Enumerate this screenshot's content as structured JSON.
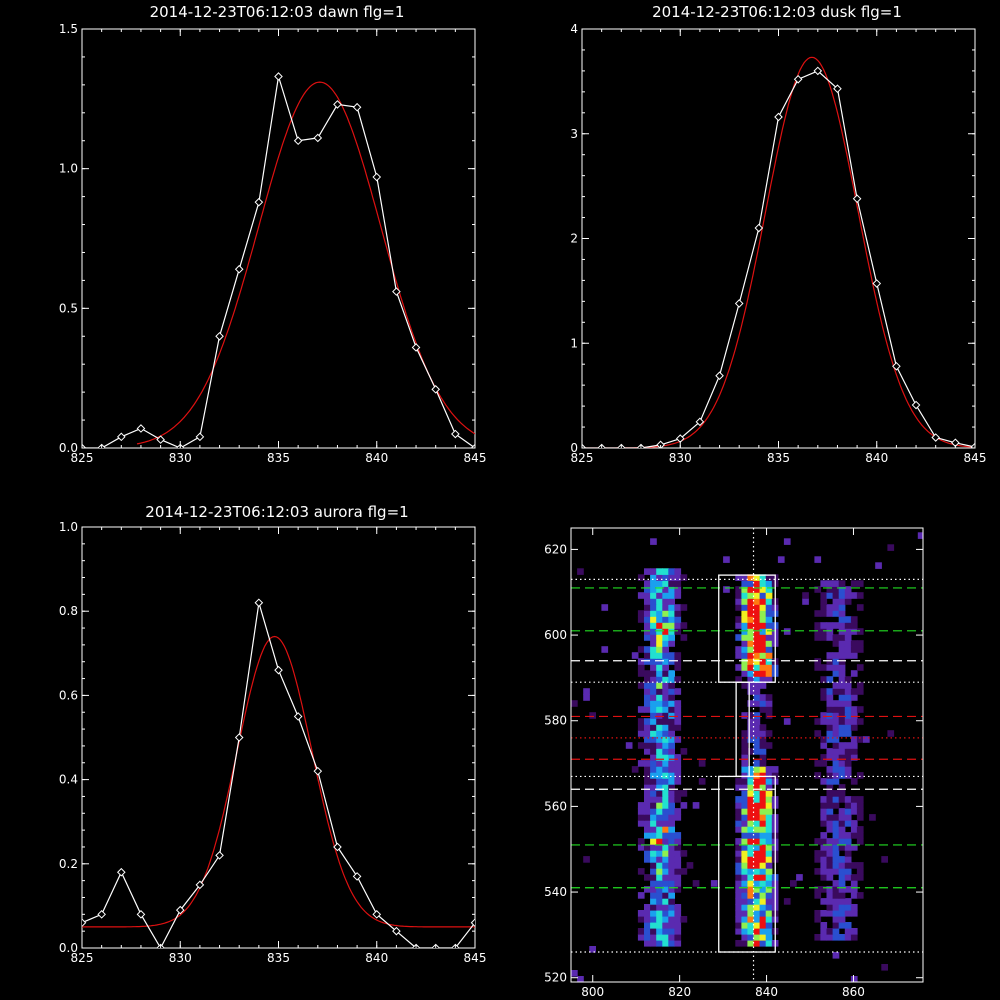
{
  "colors": {
    "background": "#000000",
    "foreground": "#ffffff",
    "fit": "#dd1111",
    "green_dash": "#22dd22",
    "red_dash": "#dd1111",
    "white_dash": "#ffffff"
  },
  "chart_data": [
    {
      "type": "line",
      "title": "2014-12-23T06:12:03 dawn flg=1",
      "xlim": [
        825,
        845
      ],
      "ylim": [
        0,
        1.5
      ],
      "xticks": [
        825,
        830,
        835,
        840,
        845
      ],
      "yticks": [
        0.0,
        0.5,
        1.0,
        1.5
      ],
      "xtick_labels": [
        "825",
        "830",
        "835",
        "840",
        "845"
      ],
      "ytick_labels": [
        "0.0",
        "0.5",
        "1.0",
        "1.5"
      ],
      "series": [
        {
          "role": "observed",
          "color": "#ffffff",
          "marker": "diamond",
          "x": [
            825,
            826,
            827,
            828,
            829,
            830,
            831,
            832,
            833,
            834,
            835,
            836,
            837,
            838,
            839,
            840,
            841,
            842,
            843,
            844,
            845
          ],
          "y": [
            0.0,
            0.0,
            0.04,
            0.07,
            0.03,
            0.0,
            0.04,
            0.4,
            0.64,
            0.88,
            1.33,
            1.1,
            1.11,
            1.23,
            1.22,
            0.97,
            0.56,
            0.36,
            0.21,
            0.05,
            0.0
          ]
        },
        {
          "role": "fit",
          "color": "#dd1111",
          "gaussian": {
            "amplitude": 1.31,
            "center": 837.1,
            "sigma": 3.1,
            "offset": 0.0
          },
          "x_start": 827.8,
          "x_end": 845
        }
      ]
    },
    {
      "type": "line",
      "title": "2014-12-23T06:12:03 dusk flg=1",
      "xlim": [
        825,
        845
      ],
      "ylim": [
        0,
        4
      ],
      "xticks": [
        825,
        830,
        835,
        840,
        845
      ],
      "yticks": [
        0,
        1,
        2,
        3,
        4
      ],
      "xtick_labels": [
        "825",
        "830",
        "835",
        "840",
        "845"
      ],
      "ytick_labels": [
        "0",
        "1",
        "2",
        "3",
        "4"
      ],
      "series": [
        {
          "role": "observed",
          "color": "#ffffff",
          "marker": "diamond",
          "x": [
            825,
            826,
            827,
            828,
            829,
            830,
            831,
            832,
            833,
            834,
            835,
            836,
            837,
            838,
            839,
            840,
            841,
            842,
            843,
            844,
            845
          ],
          "y": [
            0.0,
            0.0,
            0.0,
            0.0,
            0.03,
            0.09,
            0.25,
            0.69,
            1.38,
            2.1,
            3.16,
            3.52,
            3.6,
            3.43,
            2.38,
            1.57,
            0.78,
            0.41,
            0.1,
            0.05,
            0.01
          ]
        },
        {
          "role": "fit",
          "color": "#dd1111",
          "gaussian": {
            "amplitude": 3.73,
            "center": 836.7,
            "sigma": 2.35,
            "offset": 0.0
          },
          "x_start": 825,
          "x_end": 845
        }
      ]
    },
    {
      "type": "line",
      "title": "2014-12-23T06:12:03 aurora flg=1",
      "xlim": [
        825,
        845
      ],
      "ylim": [
        0,
        1.0
      ],
      "xticks": [
        825,
        830,
        835,
        840,
        845
      ],
      "yticks": [
        0.0,
        0.2,
        0.4,
        0.6,
        0.8,
        1.0
      ],
      "xtick_labels": [
        "825",
        "830",
        "835",
        "840",
        "845"
      ],
      "ytick_labels": [
        "0.0",
        "0.2",
        "0.4",
        "0.6",
        "0.8",
        "1.0"
      ],
      "series": [
        {
          "role": "observed",
          "color": "#ffffff",
          "marker": "diamond",
          "x": [
            825,
            826,
            827,
            828,
            829,
            830,
            831,
            832,
            833,
            834,
            835,
            836,
            837,
            838,
            839,
            840,
            841,
            842,
            843,
            844,
            845
          ],
          "y": [
            0.06,
            0.08,
            0.18,
            0.08,
            0.0,
            0.09,
            0.15,
            0.22,
            0.5,
            0.82,
            0.66,
            0.55,
            0.42,
            0.24,
            0.17,
            0.08,
            0.04,
            0.0,
            0.0,
            0.0,
            0.06
          ]
        },
        {
          "role": "fit",
          "color": "#dd1111",
          "gaussian": {
            "amplitude": 0.69,
            "center": 834.8,
            "sigma": 1.9,
            "offset": 0.05
          },
          "x_start": 825,
          "x_end": 845
        }
      ]
    },
    {
      "type": "heatmap",
      "title": "",
      "xlim": [
        795,
        876
      ],
      "ylim": [
        519,
        625
      ],
      "xticks": [
        800,
        820,
        840,
        860
      ],
      "yticks": [
        520,
        540,
        560,
        580,
        600,
        620
      ],
      "xtick_labels": [
        "800",
        "820",
        "840",
        "860"
      ],
      "ytick_labels": [
        "520",
        "540",
        "560",
        "580",
        "600",
        "620"
      ],
      "cell_size": [
        1.4,
        1.4
      ],
      "seed": 12345,
      "colorscale": [
        "#000000",
        "#3a0a5e",
        "#5a2ab0",
        "#2a4fd0",
        "#1aa0ee",
        "#22e0d0",
        "#8ef050",
        "#f0f020",
        "#ff7a10",
        "#ee1010"
      ],
      "emission_columns": [
        {
          "x_center": 815,
          "x_sigma": 3.2,
          "y_ranges": [
            [
              540,
              612
            ],
            [
              526,
              615
            ]
          ],
          "strength": 0.55
        },
        {
          "x_center": 837,
          "x_sigma": 2.6,
          "y_ranges": [
            [
              526,
              614
            ]
          ],
          "strength": 1.0
        },
        {
          "x_center": 856,
          "x_sigma": 4.0,
          "y_ranges": [
            [
              528,
              612
            ]
          ],
          "strength": 0.35
        }
      ],
      "hot_spots": [
        {
          "x": 837,
          "y": 606,
          "strength": 1.0
        },
        {
          "x": 837,
          "y": 600,
          "strength": 0.9
        },
        {
          "x": 838,
          "y": 593,
          "strength": 0.7
        },
        {
          "x": 837,
          "y": 560,
          "strength": 0.75
        },
        {
          "x": 837,
          "y": 548,
          "strength": 0.65
        },
        {
          "x": 815,
          "y": 601,
          "strength": 0.6
        },
        {
          "x": 815,
          "y": 553,
          "strength": 0.5
        }
      ],
      "boxes": [
        {
          "x0": 829,
          "x1": 842,
          "y0": 589,
          "y1": 614
        },
        {
          "x0": 829,
          "x1": 842,
          "y0": 526,
          "y1": 567
        },
        {
          "x0": 833,
          "x1": 836,
          "y0": 567,
          "y1": 589
        }
      ],
      "vertical_line": {
        "x": 837,
        "style": "dotted",
        "color": "#ffffff"
      },
      "horizontal_lines": [
        {
          "y": 613,
          "style": "dotted",
          "color": "#ffffff"
        },
        {
          "y": 611,
          "style": "dashed",
          "color": "#22dd22"
        },
        {
          "y": 601,
          "style": "dashed",
          "color": "#22dd22"
        },
        {
          "y": 594,
          "style": "dashed",
          "color": "#ffffff"
        },
        {
          "y": 589,
          "style": "dotted",
          "color": "#ffffff"
        },
        {
          "y": 581,
          "style": "dashed",
          "color": "#dd1111"
        },
        {
          "y": 576,
          "style": "dotted",
          "color": "#dd1111"
        },
        {
          "y": 571,
          "style": "dashed",
          "color": "#dd1111"
        },
        {
          "y": 567,
          "style": "dotted",
          "color": "#ffffff"
        },
        {
          "y": 564,
          "style": "dashed",
          "color": "#ffffff"
        },
        {
          "y": 551,
          "style": "dashed",
          "color": "#22dd22"
        },
        {
          "y": 541,
          "style": "dashed",
          "color": "#22dd22"
        },
        {
          "y": 526,
          "style": "dotted",
          "color": "#ffffff"
        }
      ]
    }
  ]
}
